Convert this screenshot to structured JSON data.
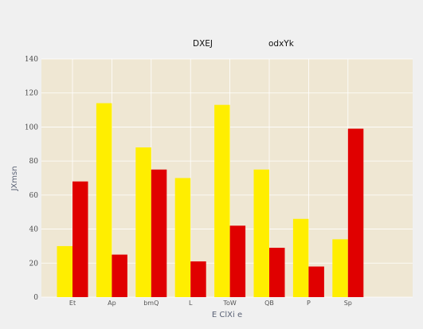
{
  "chart_data": {
    "type": "bar",
    "categories": [
      "Et",
      "Ap",
      "bmQ",
      "L",
      "ToW",
      "QB",
      "P",
      "Sp"
    ],
    "series": [
      {
        "name": "DXEJ",
        "color": "#ffee00",
        "values": [
          30,
          114,
          88,
          70,
          113,
          75,
          46,
          34
        ]
      },
      {
        "name": "odxYk",
        "color": "#e00000",
        "values": [
          68,
          25,
          75,
          21,
          42,
          29,
          18,
          99
        ]
      }
    ],
    "title": "",
    "xlabel": "E ClXi e",
    "ylabel": "JXmsn",
    "ylim": [
      0,
      140
    ],
    "yticks": [
      0,
      20,
      40,
      60,
      80,
      100,
      120,
      140
    ],
    "grid": true,
    "legend_position": "top",
    "plot_background": "#efe7d3",
    "grid_color": "#ffffff"
  }
}
